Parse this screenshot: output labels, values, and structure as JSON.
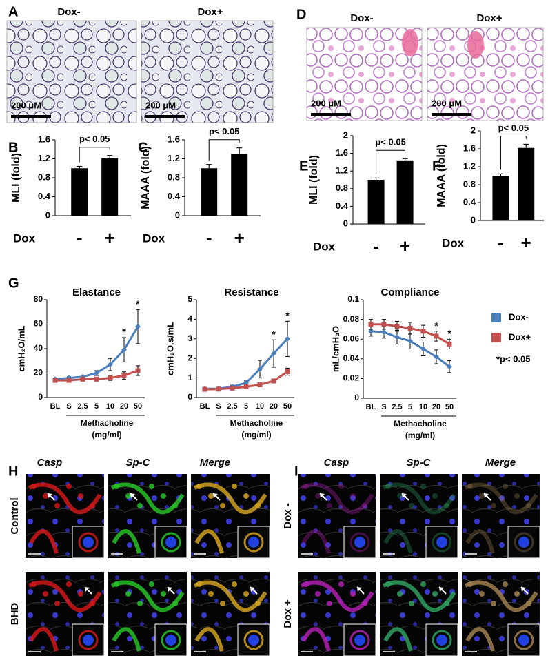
{
  "chart_data": [
    {
      "type": "bar",
      "panel": "B",
      "y_label": "MLI (fold)",
      "x_label": "Dox",
      "categories": [
        "-",
        "+"
      ],
      "values": [
        1.0,
        1.21
      ],
      "errors": [
        0.04,
        0.06
      ],
      "color": "#000000",
      "ylim": [
        0,
        1.6
      ],
      "yticks": [
        0,
        0.4,
        0.8,
        1.2,
        1.6
      ],
      "annotation": "p< 0.05"
    },
    {
      "type": "bar",
      "panel": "C",
      "y_label": "MAAA (fold)",
      "x_label": "Dox",
      "categories": [
        "-",
        "+"
      ],
      "values": [
        1.0,
        1.3
      ],
      "errors": [
        0.08,
        0.13
      ],
      "color": "#000000",
      "ylim": [
        0,
        1.6
      ],
      "yticks": [
        0,
        0.4,
        0.8,
        1.2,
        1.6
      ],
      "annotation": "p< 0.05"
    },
    {
      "type": "bar",
      "panel": "E",
      "y_label": "MLI (fold)",
      "x_label": "Dox",
      "categories": [
        "-",
        "+"
      ],
      "values": [
        1.0,
        1.44
      ],
      "errors": [
        0.04,
        0.04
      ],
      "color": "#000000",
      "ylim": [
        0,
        2
      ],
      "yticks": [
        0,
        0.4,
        0.8,
        1.2,
        1.6,
        2
      ],
      "annotation": "p< 0.05"
    },
    {
      "type": "bar",
      "panel": "F",
      "y_label": "MAAA (fold)",
      "x_label": "Dox",
      "categories": [
        "-",
        "+"
      ],
      "values": [
        1.0,
        1.62
      ],
      "errors": [
        0.04,
        0.08
      ],
      "color": "#000000",
      "ylim": [
        0,
        2
      ],
      "yticks": [
        0,
        0.4,
        0.8,
        1.2,
        1.6,
        2
      ],
      "annotation": "p< 0.05"
    },
    {
      "type": "line",
      "panel": "G",
      "title": "Elastance",
      "y_label": "cmH₂O/mL",
      "x_label": [
        "Methacholine",
        "(mg/ml)"
      ],
      "categories": [
        "BL",
        "S",
        "2.5",
        "5",
        "10",
        "20",
        "50"
      ],
      "annotations": [
        null,
        null,
        null,
        null,
        null,
        "*",
        "*"
      ],
      "ylim": [
        0,
        80
      ],
      "yticks": [
        0,
        20,
        40,
        60,
        80
      ],
      "series": [
        {
          "name": "Dox-",
          "color": "#4a7ebb",
          "values": [
            15,
            16,
            17,
            20,
            27,
            39,
            58
          ],
          "errors": [
            1,
            1,
            1,
            2,
            5,
            10,
            14
          ]
        },
        {
          "name": "Dox+",
          "color": "#c0504d",
          "values": [
            14,
            14,
            15,
            15,
            16,
            18,
            22
          ],
          "errors": [
            1,
            1,
            1,
            1,
            2,
            3,
            4
          ]
        }
      ]
    },
    {
      "type": "line",
      "title": "Resistance",
      "y_label": "cmH₂O.s/mL",
      "x_label": [
        "Methacholine",
        "(mg/ml)"
      ],
      "categories": [
        "BL",
        "S",
        "2.5",
        "5",
        "10",
        "20",
        "50"
      ],
      "annotations": [
        null,
        null,
        null,
        null,
        null,
        "*",
        "*"
      ],
      "ylim": [
        0,
        5
      ],
      "yticks": [
        0,
        1,
        2,
        3,
        4,
        5
      ],
      "series": [
        {
          "name": "Dox-",
          "color": "#4a7ebb",
          "values": [
            0.45,
            0.45,
            0.55,
            0.75,
            1.45,
            2.25,
            3.0
          ],
          "errors": [
            0.05,
            0.05,
            0.08,
            0.1,
            0.45,
            0.7,
            0.9
          ]
        },
        {
          "name": "Dox+",
          "color": "#c0504d",
          "values": [
            0.42,
            0.43,
            0.48,
            0.55,
            0.65,
            0.85,
            1.32
          ],
          "errors": [
            0.03,
            0.03,
            0.05,
            0.05,
            0.08,
            0.1,
            0.18
          ]
        }
      ]
    },
    {
      "type": "line",
      "title": "Compliance",
      "y_label": "mL/cmH₂O",
      "x_label": [
        "Methacholine",
        "(mg/ml)"
      ],
      "categories": [
        "BL",
        "S",
        "2.5",
        "5",
        "10",
        "20",
        "50"
      ],
      "annotations": [
        null,
        null,
        null,
        null,
        null,
        "*",
        "*"
      ],
      "ylim": [
        0,
        0.1
      ],
      "yticks": [
        0,
        0.02,
        0.04,
        0.06,
        0.08,
        0.1
      ],
      "series": [
        {
          "name": "Dox-",
          "color": "#4a7ebb",
          "values": [
            0.068,
            0.067,
            0.062,
            0.058,
            0.05,
            0.042,
            0.032
          ],
          "errors": [
            0.005,
            0.006,
            0.007,
            0.008,
            0.007,
            0.007,
            0.006
          ]
        },
        {
          "name": "Dox+",
          "color": "#c0504d",
          "values": [
            0.075,
            0.075,
            0.073,
            0.071,
            0.068,
            0.063,
            0.055
          ],
          "errors": [
            0.005,
            0.005,
            0.005,
            0.006,
            0.006,
            0.005,
            0.005
          ]
        }
      ]
    }
  ],
  "legend_note": "*p< 0.05",
  "image_panels": [
    {
      "letter": "A",
      "columns": [
        "Dox-",
        "Dox+"
      ],
      "scale_labels": [
        "200 μM",
        "200 μM"
      ]
    },
    {
      "letter": "D",
      "columns": [
        "Dox-",
        "Dox+"
      ],
      "scale_labels": [
        "200 μM",
        "200 μM"
      ]
    },
    {
      "letter": "H",
      "columns": [
        "Casp",
        "Sp-C",
        "Merge"
      ],
      "rows": [
        "Control",
        "BHD"
      ]
    },
    {
      "letter": "I",
      "columns": [
        "Casp",
        "Sp-C",
        "Merge"
      ],
      "rows": [
        "Dox -",
        "Dox +"
      ]
    }
  ]
}
